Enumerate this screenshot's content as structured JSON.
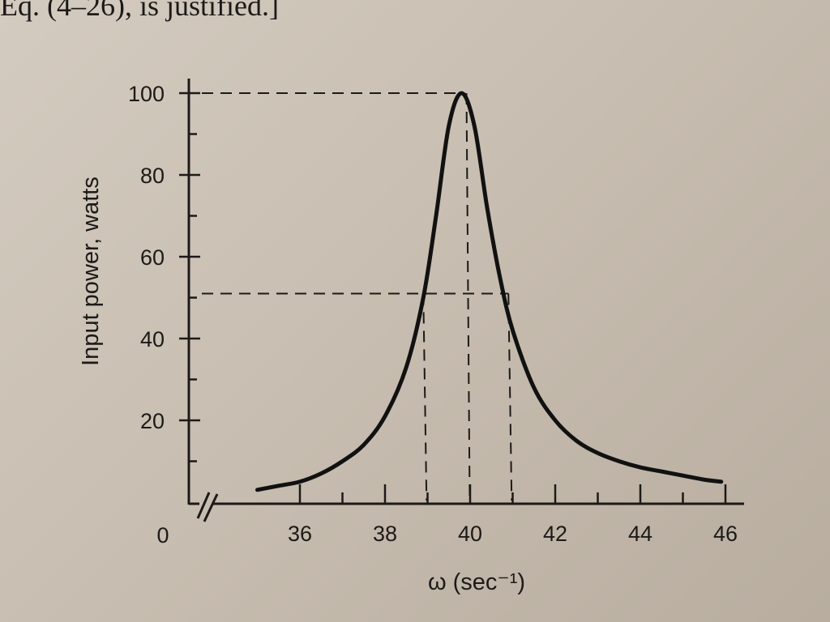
{
  "page": {
    "caption_fragment": "Eq. (4–26), is justified.]"
  },
  "chart_data": {
    "type": "line",
    "title": "",
    "xlabel": "ω   (sec⁻¹)",
    "ylabel": "Input power, watts",
    "x_ticks": [
      36,
      38,
      40,
      42,
      44,
      46
    ],
    "x_minor_ticks": [
      37,
      39,
      41,
      43,
      45
    ],
    "y_ticks": [
      20,
      40,
      60,
      80,
      100
    ],
    "y_minor_ticks": [
      10,
      30,
      50,
      70,
      90
    ],
    "origin_label": "0",
    "x_axis_break": true,
    "xlim": [
      34.8,
      46.4
    ],
    "ylim": [
      0,
      100
    ],
    "grid": false,
    "series": [
      {
        "name": "",
        "x": [
          35.0,
          35.5,
          36.0,
          36.5,
          37.0,
          37.5,
          38.0,
          38.5,
          38.9,
          39.2,
          39.5,
          39.8,
          40.1,
          40.4,
          40.7,
          41.0,
          41.5,
          42.0,
          42.5,
          43.0,
          43.5,
          44.0,
          44.5,
          45.0,
          45.5,
          45.9
        ],
        "y": [
          3,
          4,
          5,
          7,
          10,
          14,
          21,
          33,
          50,
          70,
          92,
          100,
          92,
          72,
          55,
          42,
          28,
          20,
          15,
          12,
          10,
          8.5,
          7.5,
          6.5,
          5.5,
          5
        ]
      }
    ],
    "guide_lines": {
      "peak": {
        "x": 39.8,
        "y": 100
      },
      "half_power": {
        "y": 51,
        "x_low": 38.9,
        "x_high": 40.9
      }
    }
  }
}
